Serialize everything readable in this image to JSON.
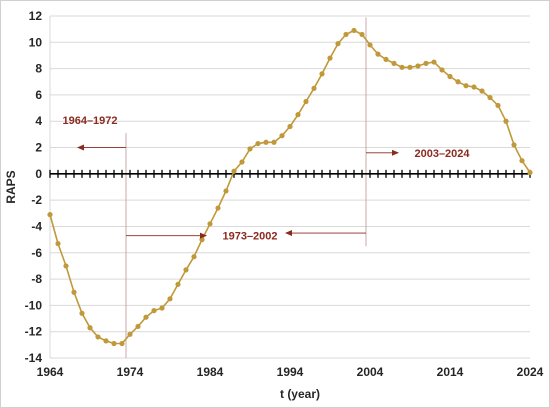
{
  "chart_data": {
    "type": "line",
    "xlabel": "t (year)",
    "ylabel": "RAPS",
    "xlim": [
      1964,
      2024
    ],
    "ylim": [
      -14,
      12
    ],
    "x_ticks": [
      1964,
      1974,
      1984,
      1994,
      2004,
      2014,
      2024
    ],
    "y_ticks": [
      -14,
      -12,
      -10,
      -8,
      -6,
      -4,
      -2,
      0,
      2,
      4,
      6,
      8,
      10,
      12
    ],
    "grid": "horizontal",
    "colors": {
      "line": "#c09a3a",
      "marker": "#c09a3a",
      "annotation": "#8b2a20",
      "axis": "#000000",
      "grid": "#d9d9d9",
      "divider": "#c9a8a8"
    },
    "series": [
      {
        "x": [
          1964,
          1965,
          1966,
          1967,
          1968,
          1969,
          1970,
          1971,
          1972,
          1973,
          1974,
          1975,
          1976,
          1977,
          1978,
          1979,
          1980,
          1981,
          1982,
          1983,
          1984,
          1985,
          1986,
          1987,
          1988,
          1989,
          1990,
          1991,
          1992,
          1993,
          1994,
          1995,
          1996,
          1997,
          1998,
          1999,
          2000,
          2001,
          2002,
          2003,
          2004,
          2005,
          2006,
          2007,
          2008,
          2009,
          2010,
          2011,
          2012,
          2013,
          2014,
          2015,
          2016,
          2017,
          2018,
          2019,
          2020,
          2021,
          2022,
          2023,
          2024
        ],
        "values": [
          -3.1,
          -5.3,
          -7.0,
          -9.0,
          -10.6,
          -11.7,
          -12.4,
          -12.7,
          -12.9,
          -12.9,
          -12.2,
          -11.6,
          -10.9,
          -10.4,
          -10.2,
          -9.5,
          -8.4,
          -7.3,
          -6.3,
          -5.0,
          -3.8,
          -2.6,
          -1.3,
          0.2,
          0.9,
          1.9,
          2.3,
          2.4,
          2.4,
          2.9,
          3.6,
          4.5,
          5.5,
          6.5,
          7.6,
          8.8,
          9.9,
          10.6,
          10.9,
          10.6,
          9.8,
          9.1,
          8.7,
          8.4,
          8.1,
          8.1,
          8.2,
          8.4,
          8.5,
          7.9,
          7.4,
          7.0,
          6.7,
          6.6,
          6.3,
          5.8,
          5.2,
          4.0,
          2.2,
          1.0,
          0.1
        ]
      }
    ],
    "annotations": [
      {
        "text": "1964–1972",
        "x": 1969,
        "y": 4.1
      },
      {
        "text": "1973–2002",
        "x": 1989,
        "y": -4.7
      },
      {
        "text": "2003–2024",
        "x": 2013,
        "y": 1.6
      }
    ],
    "arrows": [
      {
        "from": [
          1973.5,
          2.0
        ],
        "to": [
          1967.5,
          2.0
        ]
      },
      {
        "from": [
          1973.5,
          -4.7
        ],
        "to": [
          1983.5,
          -4.7
        ]
      },
      {
        "from": [
          2003.5,
          -4.5
        ],
        "to": [
          1993.5,
          -4.5
        ]
      },
      {
        "from": [
          2003.5,
          1.6
        ],
        "to": [
          2007.5,
          1.6
        ]
      }
    ],
    "dividers": [
      {
        "x": 1973.5,
        "y_from": -14,
        "y_to": 3.1
      },
      {
        "x": 2003.5,
        "y_from": -5.5,
        "y_to": 11.9
      }
    ]
  }
}
